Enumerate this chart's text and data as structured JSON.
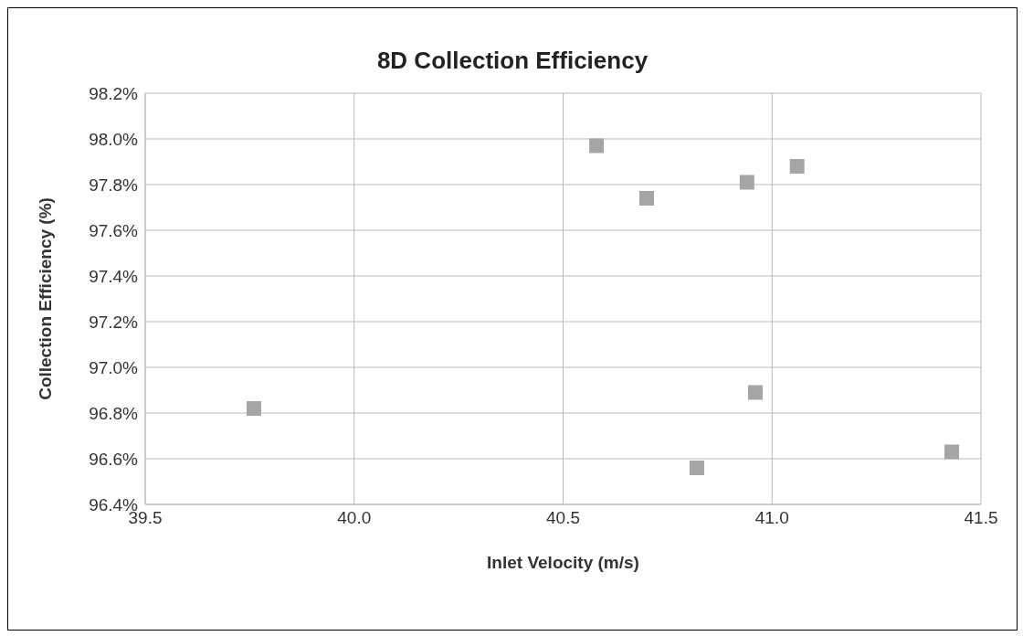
{
  "chart_data": {
    "type": "scatter",
    "title": "8D Collection Efficiency",
    "xlabel": "Inlet Velocity (m/s)",
    "ylabel": "Collection Efficiency (%)",
    "x": [
      40.58,
      40.7,
      40.94,
      41.06,
      40.96,
      39.76,
      40.82,
      41.43
    ],
    "series": [
      {
        "color": "#a5a5a5",
        "values": [
          97.97,
          97.74,
          97.81,
          97.88,
          96.89,
          96.82,
          96.56,
          96.63
        ]
      }
    ],
    "xlim": [
      39.5,
      41.5
    ],
    "xticks": [
      {
        "value": 39.5,
        "label": "39.5"
      },
      {
        "value": 40,
        "label": "40.0"
      },
      {
        "value": 40.5,
        "label": "40.5"
      },
      {
        "value": 41,
        "label": "41.0"
      },
      {
        "value": 41.5,
        "label": "41.5"
      }
    ],
    "ylim": [
      96.4,
      98.2
    ],
    "yticks": [
      {
        "value": 96.4,
        "label": "96.4%"
      },
      {
        "value": 96.6,
        "label": "96.6%"
      },
      {
        "value": 96.8,
        "label": "96.8%"
      },
      {
        "value": 97,
        "label": "97.0%"
      },
      {
        "value": 97.2,
        "label": "97.2%"
      },
      {
        "value": 97.4,
        "label": "97.4%"
      },
      {
        "value": 97.6,
        "label": "97.6%"
      },
      {
        "value": 97.8,
        "label": "97.8%"
      },
      {
        "value": 98,
        "label": "98.0%"
      },
      {
        "value": 98.2,
        "label": "98.2%"
      }
    ],
    "grid": true,
    "marker": "square"
  }
}
